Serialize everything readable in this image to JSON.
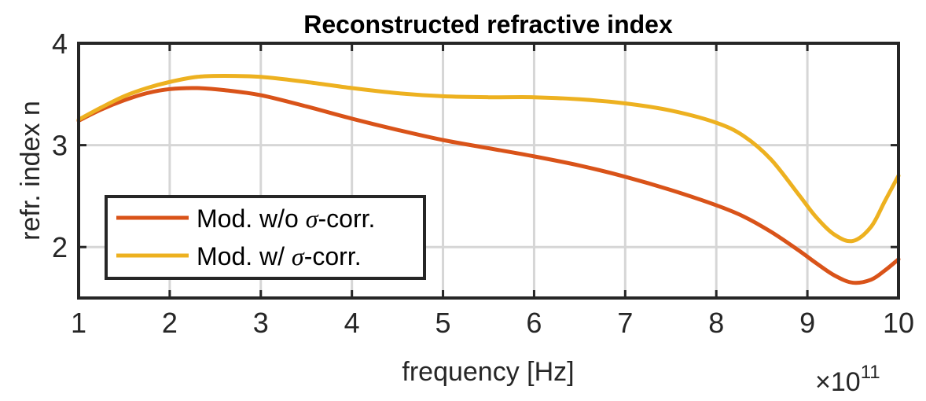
{
  "chart_data": {
    "type": "line",
    "title": "Reconstructed refractive index",
    "xlabel": "frequency [Hz]",
    "ylabel": "refr. index n",
    "x_exponent": {
      "base": "×10",
      "power": "11"
    },
    "xlim": [
      1,
      10
    ],
    "ylim": [
      1.5,
      4
    ],
    "xticks": [
      1,
      2,
      3,
      4,
      5,
      6,
      7,
      8,
      9,
      10
    ],
    "yticks": [
      2,
      3,
      4
    ],
    "grid": true,
    "legend_position": "bottom-left",
    "series": [
      {
        "name": "Mod. w/o σ-corr.",
        "label_parts": {
          "prefix": "Mod. w/o ",
          "sigma": "σ",
          "suffix": "-corr."
        },
        "color": "#D95319",
        "x": [
          1.0,
          1.25,
          1.5,
          1.75,
          2.0,
          2.3,
          2.6,
          3.0,
          3.5,
          4.0,
          4.5,
          5.0,
          5.5,
          6.0,
          6.5,
          7.0,
          7.5,
          8.0,
          8.3,
          8.6,
          8.9,
          9.1,
          9.3,
          9.5,
          9.7,
          9.85,
          10.0
        ],
        "y": [
          3.24,
          3.35,
          3.44,
          3.51,
          3.55,
          3.56,
          3.54,
          3.49,
          3.38,
          3.26,
          3.15,
          3.05,
          2.97,
          2.89,
          2.8,
          2.69,
          2.56,
          2.41,
          2.3,
          2.15,
          1.97,
          1.84,
          1.72,
          1.65,
          1.68,
          1.77,
          1.88
        ]
      },
      {
        "name": "Mod. w/ σ-corr.",
        "label_parts": {
          "prefix": "Mod. w/ ",
          "sigma": "σ",
          "suffix": "-corr."
        },
        "color": "#EDB120",
        "x": [
          1.0,
          1.25,
          1.5,
          1.75,
          2.0,
          2.3,
          2.6,
          3.0,
          3.5,
          4.0,
          4.5,
          5.0,
          5.5,
          6.0,
          6.5,
          7.0,
          7.5,
          8.0,
          8.3,
          8.6,
          8.9,
          9.1,
          9.3,
          9.5,
          9.7,
          9.85,
          10.0
        ],
        "y": [
          3.25,
          3.37,
          3.48,
          3.56,
          3.62,
          3.67,
          3.68,
          3.67,
          3.62,
          3.56,
          3.51,
          3.48,
          3.47,
          3.47,
          3.45,
          3.41,
          3.34,
          3.22,
          3.09,
          2.86,
          2.52,
          2.29,
          2.12,
          2.06,
          2.2,
          2.45,
          2.7
        ]
      }
    ]
  }
}
